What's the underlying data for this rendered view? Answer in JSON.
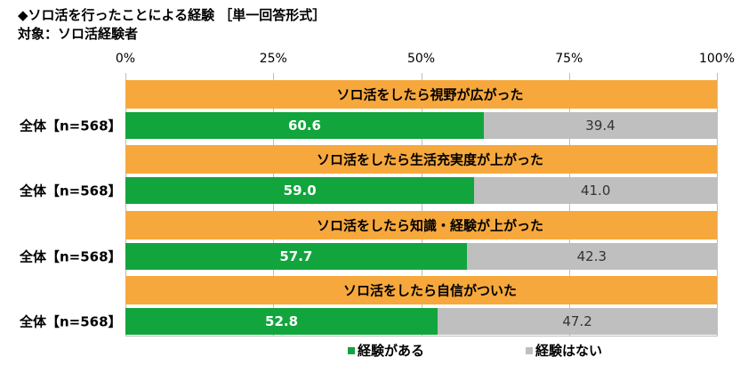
{
  "title": "◆ソロ活を行ったことによる経験 ［単一回答形式］",
  "subtitle": "対象：ソロ活経験者",
  "chart_data": {
    "type": "bar",
    "orientation": "horizontal-stacked",
    "title": "◆ソロ活を行ったことによる経験 ［単一回答形式］",
    "subtitle": "対象：ソロ活経験者",
    "xlim": [
      0,
      100
    ],
    "ticks": [
      "0%",
      "25%",
      "50%",
      "75%",
      "100%"
    ],
    "colors": {
      "header": "#f7a83c",
      "yes": "#12a53d",
      "no": "#bfbfbf"
    },
    "legend": [
      "経験がある",
      "経験はない"
    ],
    "legend_position": "bottom",
    "rows": [
      {
        "item": "ソロ活をしたら視野が広がった",
        "label": "全体【n=568】",
        "yes": 60.6,
        "no": 39.4
      },
      {
        "item": "ソロ活をしたら生活充実度が上がった",
        "label": "全体【n=568】",
        "yes": 59.0,
        "no": 41.0
      },
      {
        "item": "ソロ活をしたら知識・経験が上がった",
        "label": "全体【n=568】",
        "yes": 57.7,
        "no": 42.3
      },
      {
        "item": "ソロ活をしたら自信がついた",
        "label": "全体【n=568】",
        "yes": 52.8,
        "no": 47.2
      }
    ]
  }
}
